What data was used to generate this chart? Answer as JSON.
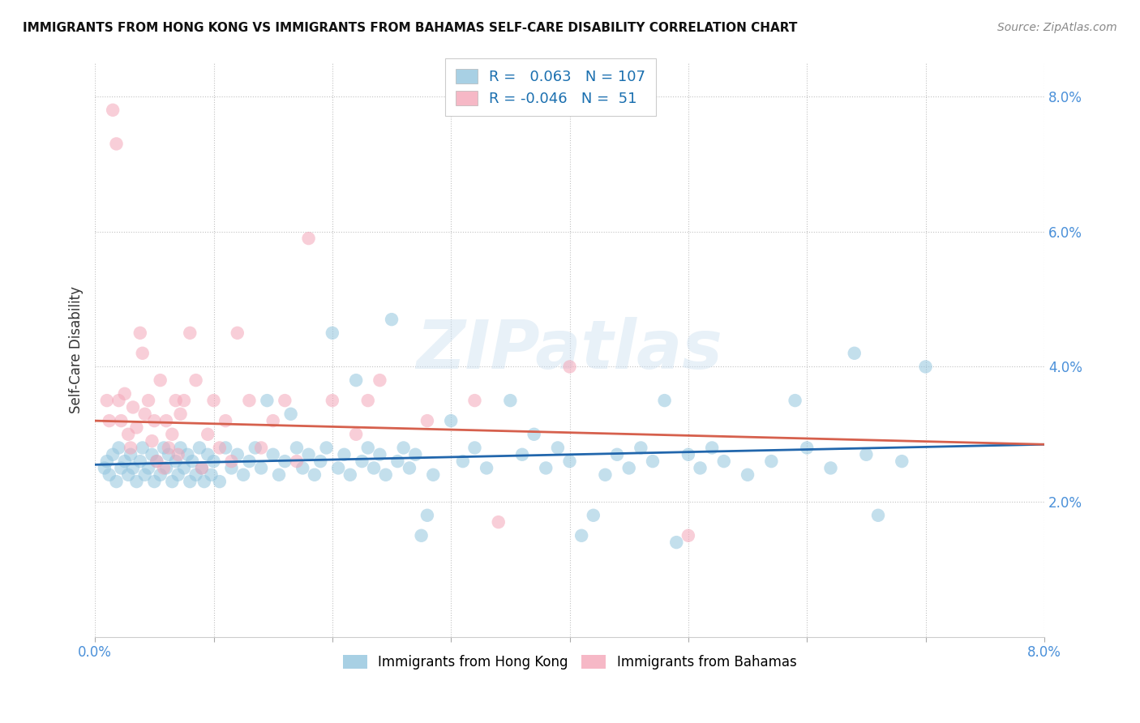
{
  "title": "IMMIGRANTS FROM HONG KONG VS IMMIGRANTS FROM BAHAMAS SELF-CARE DISABILITY CORRELATION CHART",
  "source": "Source: ZipAtlas.com",
  "ylabel": "Self-Care Disability",
  "legend_label_blue": "Immigrants from Hong Kong",
  "legend_label_pink": "Immigrants from Bahamas",
  "r_blue": 0.063,
  "n_blue": 107,
  "r_pink": -0.046,
  "n_pink": 51,
  "xlim": [
    0.0,
    8.0
  ],
  "ylim": [
    0.0,
    8.5
  ],
  "yticks": [
    2.0,
    4.0,
    6.0,
    8.0
  ],
  "color_blue": "#92c5de",
  "color_pink": "#f4a6b8",
  "line_color_blue": "#2166ac",
  "line_color_pink": "#d6604d",
  "background_color": "#ffffff",
  "watermark": "ZIPatlas",
  "blue_line_x0": 0.0,
  "blue_line_y0": 2.55,
  "blue_line_x1": 8.0,
  "blue_line_y1": 2.85,
  "pink_line_x0": 0.0,
  "pink_line_y0": 3.2,
  "pink_line_x1": 8.0,
  "pink_line_y1": 2.85,
  "blue_points": [
    [
      0.08,
      2.5
    ],
    [
      0.1,
      2.6
    ],
    [
      0.12,
      2.4
    ],
    [
      0.15,
      2.7
    ],
    [
      0.18,
      2.3
    ],
    [
      0.2,
      2.8
    ],
    [
      0.22,
      2.5
    ],
    [
      0.25,
      2.6
    ],
    [
      0.28,
      2.4
    ],
    [
      0.3,
      2.7
    ],
    [
      0.32,
      2.5
    ],
    [
      0.35,
      2.3
    ],
    [
      0.38,
      2.6
    ],
    [
      0.4,
      2.8
    ],
    [
      0.42,
      2.4
    ],
    [
      0.45,
      2.5
    ],
    [
      0.48,
      2.7
    ],
    [
      0.5,
      2.3
    ],
    [
      0.52,
      2.6
    ],
    [
      0.55,
      2.4
    ],
    [
      0.58,
      2.8
    ],
    [
      0.6,
      2.5
    ],
    [
      0.62,
      2.7
    ],
    [
      0.65,
      2.3
    ],
    [
      0.68,
      2.6
    ],
    [
      0.7,
      2.4
    ],
    [
      0.72,
      2.8
    ],
    [
      0.75,
      2.5
    ],
    [
      0.78,
      2.7
    ],
    [
      0.8,
      2.3
    ],
    [
      0.82,
      2.6
    ],
    [
      0.85,
      2.4
    ],
    [
      0.88,
      2.8
    ],
    [
      0.9,
      2.5
    ],
    [
      0.92,
      2.3
    ],
    [
      0.95,
      2.7
    ],
    [
      0.98,
      2.4
    ],
    [
      1.0,
      2.6
    ],
    [
      1.05,
      2.3
    ],
    [
      1.1,
      2.8
    ],
    [
      1.15,
      2.5
    ],
    [
      1.2,
      2.7
    ],
    [
      1.25,
      2.4
    ],
    [
      1.3,
      2.6
    ],
    [
      1.35,
      2.8
    ],
    [
      1.4,
      2.5
    ],
    [
      1.45,
      3.5
    ],
    [
      1.5,
      2.7
    ],
    [
      1.55,
      2.4
    ],
    [
      1.6,
      2.6
    ],
    [
      1.65,
      3.3
    ],
    [
      1.7,
      2.8
    ],
    [
      1.75,
      2.5
    ],
    [
      1.8,
      2.7
    ],
    [
      1.85,
      2.4
    ],
    [
      1.9,
      2.6
    ],
    [
      1.95,
      2.8
    ],
    [
      2.0,
      4.5
    ],
    [
      2.05,
      2.5
    ],
    [
      2.1,
      2.7
    ],
    [
      2.15,
      2.4
    ],
    [
      2.2,
      3.8
    ],
    [
      2.25,
      2.6
    ],
    [
      2.3,
      2.8
    ],
    [
      2.35,
      2.5
    ],
    [
      2.4,
      2.7
    ],
    [
      2.45,
      2.4
    ],
    [
      2.5,
      4.7
    ],
    [
      2.55,
      2.6
    ],
    [
      2.6,
      2.8
    ],
    [
      2.65,
      2.5
    ],
    [
      2.7,
      2.7
    ],
    [
      2.75,
      1.5
    ],
    [
      2.8,
      1.8
    ],
    [
      2.85,
      2.4
    ],
    [
      3.0,
      3.2
    ],
    [
      3.1,
      2.6
    ],
    [
      3.2,
      2.8
    ],
    [
      3.3,
      2.5
    ],
    [
      3.5,
      3.5
    ],
    [
      3.6,
      2.7
    ],
    [
      3.7,
      3.0
    ],
    [
      3.8,
      2.5
    ],
    [
      3.9,
      2.8
    ],
    [
      4.0,
      2.6
    ],
    [
      4.1,
      1.5
    ],
    [
      4.2,
      1.8
    ],
    [
      4.3,
      2.4
    ],
    [
      4.4,
      2.7
    ],
    [
      4.5,
      2.5
    ],
    [
      4.6,
      2.8
    ],
    [
      4.7,
      2.6
    ],
    [
      4.8,
      3.5
    ],
    [
      4.9,
      1.4
    ],
    [
      5.0,
      2.7
    ],
    [
      5.1,
      2.5
    ],
    [
      5.2,
      2.8
    ],
    [
      5.3,
      2.6
    ],
    [
      5.5,
      2.4
    ],
    [
      5.7,
      2.6
    ],
    [
      5.9,
      3.5
    ],
    [
      6.0,
      2.8
    ],
    [
      6.2,
      2.5
    ],
    [
      6.4,
      4.2
    ],
    [
      6.5,
      2.7
    ],
    [
      6.6,
      1.8
    ],
    [
      6.8,
      2.6
    ],
    [
      7.0,
      4.0
    ]
  ],
  "pink_points": [
    [
      0.1,
      3.5
    ],
    [
      0.12,
      3.2
    ],
    [
      0.15,
      7.8
    ],
    [
      0.18,
      7.3
    ],
    [
      0.2,
      3.5
    ],
    [
      0.22,
      3.2
    ],
    [
      0.25,
      3.6
    ],
    [
      0.28,
      3.0
    ],
    [
      0.3,
      2.8
    ],
    [
      0.32,
      3.4
    ],
    [
      0.35,
      3.1
    ],
    [
      0.38,
      4.5
    ],
    [
      0.4,
      4.2
    ],
    [
      0.42,
      3.3
    ],
    [
      0.45,
      3.5
    ],
    [
      0.48,
      2.9
    ],
    [
      0.5,
      3.2
    ],
    [
      0.52,
      2.6
    ],
    [
      0.55,
      3.8
    ],
    [
      0.58,
      2.5
    ],
    [
      0.6,
      3.2
    ],
    [
      0.62,
      2.8
    ],
    [
      0.65,
      3.0
    ],
    [
      0.68,
      3.5
    ],
    [
      0.7,
      2.7
    ],
    [
      0.72,
      3.3
    ],
    [
      0.75,
      3.5
    ],
    [
      0.8,
      4.5
    ],
    [
      0.85,
      3.8
    ],
    [
      0.9,
      2.5
    ],
    [
      0.95,
      3.0
    ],
    [
      1.0,
      3.5
    ],
    [
      1.05,
      2.8
    ],
    [
      1.1,
      3.2
    ],
    [
      1.15,
      2.6
    ],
    [
      1.2,
      4.5
    ],
    [
      1.3,
      3.5
    ],
    [
      1.4,
      2.8
    ],
    [
      1.5,
      3.2
    ],
    [
      1.6,
      3.5
    ],
    [
      1.7,
      2.6
    ],
    [
      1.8,
      5.9
    ],
    [
      2.0,
      3.5
    ],
    [
      2.2,
      3.0
    ],
    [
      2.3,
      3.5
    ],
    [
      2.4,
      3.8
    ],
    [
      2.8,
      3.2
    ],
    [
      3.2,
      3.5
    ],
    [
      3.4,
      1.7
    ],
    [
      4.0,
      4.0
    ],
    [
      5.0,
      1.5
    ]
  ]
}
